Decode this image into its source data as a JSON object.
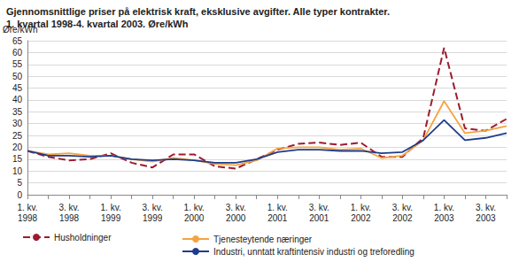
{
  "chart_data": {
    "type": "line",
    "title": "Gjennomsnittlige priser på elektrisk kraft, eksklusive avgifter. Alle typer kontrakter.",
    "subtitle": "1. kvartal 1998-4. kvartal 2003. Øre/kWh",
    "y_label": "Øre/kWh",
    "categories": [
      "1. kv. 1998",
      null,
      "3. kv. 1998",
      null,
      "1. kv. 1999",
      null,
      "3. kv. 1999",
      null,
      "1. kv. 2000",
      null,
      "3. kv. 2000",
      null,
      "1. kv. 2001",
      null,
      "3. kv. 2001",
      null,
      "1. kv. 2002",
      null,
      "3. kv. 2002",
      null,
      "1. kv. 2003",
      null,
      "3. kv. 2003",
      null
    ],
    "series": [
      {
        "name": "Husholdninger",
        "color": "#9e1b2f",
        "line_style": "dashed",
        "values": [
          18.5,
          16,
          14.5,
          15,
          17.5,
          13.5,
          11.5,
          17,
          17,
          12,
          11,
          15,
          19,
          21.5,
          22,
          21,
          22,
          16,
          16,
          24,
          62,
          28,
          27,
          32
        ]
      },
      {
        "name": "Tjenesteytende næringer",
        "color": "#f5a340",
        "line_style": "solid",
        "values": [
          18.5,
          17,
          17.5,
          16.5,
          16.5,
          15,
          14,
          15.5,
          14.5,
          13,
          12.5,
          14.5,
          19.5,
          20,
          20,
          19,
          19.5,
          15.5,
          16.5,
          23,
          39.5,
          26,
          27,
          29
        ]
      },
      {
        "name": "Industri, unntatt kraftintensiv industri og treforedling",
        "color": "#1f3c8c",
        "line_style": "solid",
        "values": [
          18.5,
          16.5,
          16.5,
          16,
          16.5,
          15,
          14.5,
          15,
          14.5,
          13.5,
          13.5,
          15,
          18,
          19,
          19,
          18.5,
          18.5,
          17.5,
          18,
          23,
          31.5,
          23,
          24,
          26
        ]
      }
    ],
    "ylim": [
      0,
      65
    ],
    "yticks": [
      0,
      5,
      10,
      15,
      20,
      25,
      30,
      35,
      40,
      45,
      50,
      55,
      60,
      65
    ],
    "grid": true,
    "legend": "bottom"
  }
}
